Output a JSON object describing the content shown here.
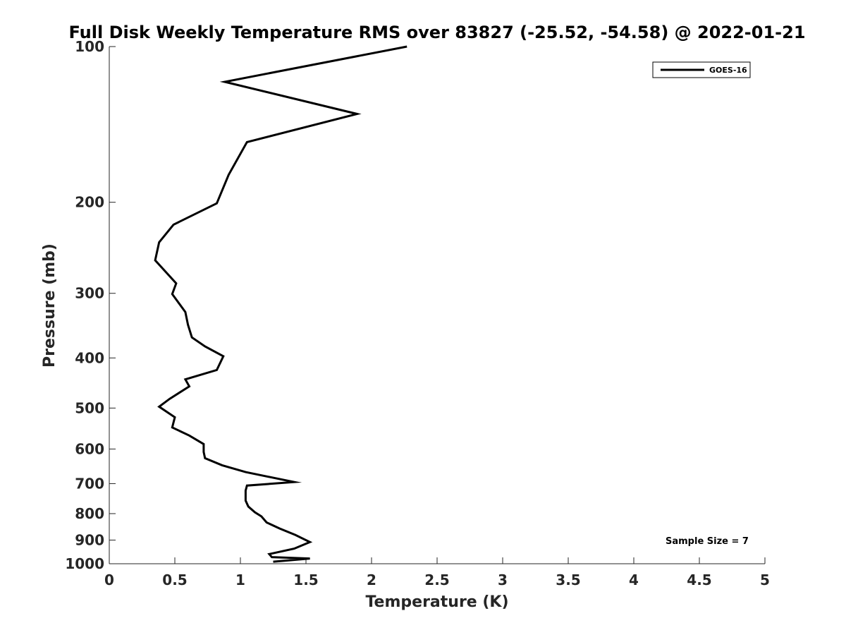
{
  "chart_data": {
    "type": "line",
    "title": "Full Disk Weekly Temperature RMS over 83827 (-25.52, -54.58) @ 2022-01-21",
    "xlabel": "Temperature (K)",
    "ylabel": "Pressure (mb)",
    "xlim": [
      0,
      5
    ],
    "ylim": [
      100,
      1000
    ],
    "y_scale": "log",
    "y_direction": "reversed",
    "grid": false,
    "x_ticks": [
      0,
      0.5,
      1,
      1.5,
      2,
      2.5,
      3,
      3.5,
      4,
      4.5,
      5
    ],
    "x_tick_labels": [
      "0",
      "0.5",
      "1",
      "1.5",
      "2",
      "2.5",
      "3",
      "3.5",
      "4",
      "4.5",
      "5"
    ],
    "y_ticks": [
      100,
      200,
      300,
      400,
      500,
      600,
      700,
      800,
      900,
      1000
    ],
    "y_tick_labels": [
      "100",
      "200",
      "300",
      "400",
      "500",
      "600",
      "700",
      "800",
      "900",
      "1000"
    ],
    "legend": {
      "position": "top-right",
      "entries": [
        "GOES-16"
      ]
    },
    "annotation": "Sample Size = 7",
    "series": [
      {
        "name": "GOES-16",
        "color": "#000000",
        "x": [
          2.27,
          0.88,
          1.89,
          1.05,
          0.91,
          0.82,
          0.49,
          0.38,
          0.35,
          0.51,
          0.48,
          0.58,
          0.6,
          0.63,
          0.73,
          0.87,
          0.82,
          0.58,
          0.61,
          0.46,
          0.38,
          0.5,
          0.48,
          0.61,
          0.72,
          0.72,
          0.73,
          0.86,
          1.04,
          1.41,
          1.05,
          1.04,
          1.04,
          1.06,
          1.11,
          1.16,
          1.2,
          1.3,
          1.42,
          1.53,
          1.41,
          1.22,
          1.24,
          1.53,
          1.25
        ],
        "y": [
          100,
          117,
          135,
          153,
          177,
          201,
          221,
          239,
          259,
          287,
          301,
          326,
          345,
          365,
          380,
          397,
          422,
          440,
          454,
          480,
          497,
          521,
          545,
          565,
          587,
          608,
          625,
          645,
          665,
          695,
          706,
          722,
          755,
          775,
          795,
          810,
          832,
          855,
          880,
          908,
          935,
          958,
          971,
          977,
          991
        ]
      }
    ]
  }
}
